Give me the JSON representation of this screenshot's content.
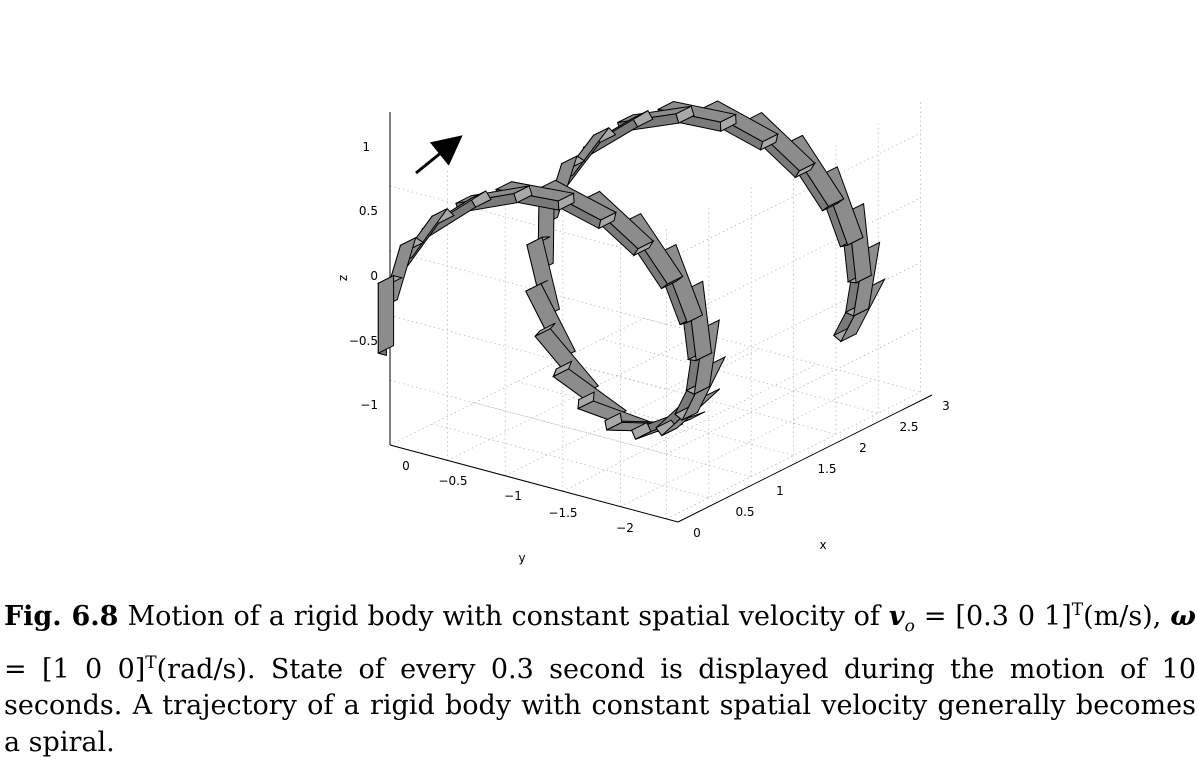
{
  "figure": {
    "axes": {
      "x": {
        "title": "x",
        "ticks": [
          "0",
          "0.5",
          "1",
          "1.5",
          "2",
          "2.5",
          "3"
        ]
      },
      "y": {
        "title": "y",
        "ticks": [
          "0",
          "−0.5",
          "−1",
          "−1.5",
          "−2"
        ]
      },
      "z": {
        "title": "z",
        "ticks": [
          "1",
          "0.5",
          "0",
          "−0.5",
          "−1"
        ]
      }
    },
    "motion": {
      "v_o": [
        0.3,
        0,
        1
      ],
      "omega": [
        1,
        0,
        0
      ],
      "sample_interval_s": 0.3,
      "duration_s": 10
    },
    "colors": {
      "body_face": "#8c8c8c",
      "body_side": "#7a7a7a",
      "grid": "#bbbbbb"
    },
    "arrow_icon": "direction-arrow"
  },
  "caption": {
    "label": "Fig. 6.8",
    "text1": " Motion of a rigid body with constant spatial velocity of ",
    "v_symbol": "v",
    "v_sub": "o",
    "text2": " = [0.3 0 1]",
    "sup_T": "T",
    "text3": "(m/s), ",
    "omega_symbol": "ω",
    "text4": " = [1 0 0]",
    "text5": "(rad/s). State of every 0.3 second is displayed during the motion of 10 seconds. A trajectory of a rigid body with constant spatial velocity generally becomes a spiral."
  }
}
